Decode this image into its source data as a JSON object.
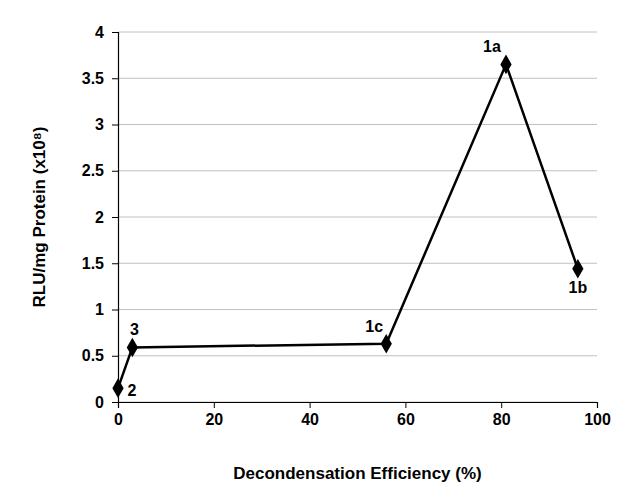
{
  "chart_data": {
    "type": "line",
    "x_label": "Decondensation Efficiency (%)",
    "y_label": "RLU/mg Protein (x10⁸)",
    "x": [
      0,
      3,
      56,
      81,
      96
    ],
    "values": [
      0.15,
      0.59,
      0.63,
      3.65,
      1.44
    ],
    "labels": [
      "2",
      "3",
      "1c",
      "1a",
      "1b"
    ],
    "color": "#000000",
    "marker": "diamond",
    "line_style": "solid",
    "xlim": [
      0,
      100
    ],
    "xticks": [
      0,
      20,
      40,
      60,
      80,
      100
    ],
    "ylim": [
      0,
      4
    ],
    "yticks": [
      0,
      0.5,
      1,
      1.5,
      2,
      2.5,
      3,
      3.5,
      4
    ],
    "grid": true
  }
}
